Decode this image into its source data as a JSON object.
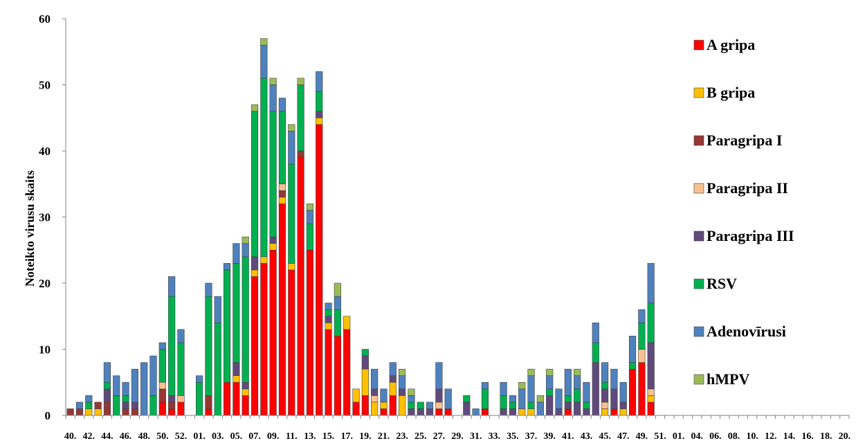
{
  "chart_data": {
    "type": "bar",
    "stacked": true,
    "ylabel": "Noteikto virusu skaits",
    "xlabel": "",
    "ylim": [
      0,
      60
    ],
    "yticks": [
      0,
      10,
      20,
      30,
      40,
      50,
      60
    ],
    "grid": false,
    "legend_position": "right",
    "weeks": [
      "40",
      "41",
      "42",
      "43",
      "44",
      "45",
      "46",
      "47",
      "48",
      "49",
      "50",
      "51",
      "52",
      "01",
      "02",
      "03",
      "04",
      "05",
      "06",
      "07",
      "08",
      "09",
      "10",
      "11",
      "12",
      "13",
      "14",
      "15",
      "16",
      "17",
      "18",
      "19",
      "20",
      "21",
      "22",
      "23",
      "24",
      "25",
      "26",
      "27",
      "28",
      "29",
      "30",
      "31",
      "32",
      "33",
      "34",
      "35",
      "36",
      "37",
      "38",
      "39",
      "40",
      "41",
      "42",
      "43",
      "44",
      "45",
      "46",
      "47",
      "48",
      "49",
      "50",
      "51",
      "52",
      "01",
      "02",
      "03",
      "04",
      "05",
      "06",
      "07",
      "08",
      "09",
      "10",
      "11",
      "12",
      "13",
      "14",
      "15",
      "16",
      "17",
      "18",
      "19",
      "20"
    ],
    "tick_labels": [
      "40.",
      "42.",
      "44.",
      "46.",
      "48.",
      "50.",
      "52.",
      "01.",
      "03.",
      "05.",
      "07.",
      "09.",
      "11.",
      "13.",
      "15.",
      "17.",
      "19.",
      "21.",
      "23.",
      "25.",
      "27.",
      "29.",
      "31.",
      "33.",
      "35.",
      "37.",
      "39.",
      "41.",
      "43.",
      "45.",
      "47.",
      "49.",
      "51.",
      "01.",
      "04.",
      "06.",
      "08.",
      "10.",
      "12.",
      "14.",
      "16.",
      "18.",
      "20."
    ],
    "series": [
      {
        "name": "A gripa",
        "color": "#ff0000",
        "values": [
          0,
          0,
          0,
          0,
          0,
          0,
          0,
          0,
          0,
          0,
          2,
          1,
          2,
          0,
          0,
          1,
          0,
          5,
          5,
          3,
          21,
          23,
          25,
          32,
          22,
          39,
          25,
          44,
          13,
          12,
          13,
          2,
          3,
          0,
          1,
          3,
          0,
          0,
          0,
          0,
          1,
          1,
          0,
          0,
          0,
          1,
          0,
          0,
          0,
          0,
          0,
          0,
          0,
          0,
          1,
          0,
          0,
          0,
          0,
          1,
          0,
          7,
          8,
          2,
          0,
          0,
          0,
          0,
          0,
          0,
          0,
          0,
          0,
          0,
          0,
          0,
          0,
          0,
          0,
          0,
          0,
          0,
          0,
          0,
          0
        ]
      },
      {
        "name": "B gripa",
        "color": "#ffc000",
        "values": [
          0,
          0,
          1,
          1,
          0,
          0,
          0,
          0,
          0,
          0,
          0,
          0,
          0,
          0,
          0,
          0,
          0,
          0,
          1,
          1,
          1,
          1,
          1,
          1,
          1,
          0,
          0,
          1,
          1,
          0,
          2,
          2,
          4,
          2,
          1,
          2,
          3,
          0,
          0,
          0,
          0,
          0,
          0,
          0,
          0,
          0,
          0,
          0,
          0,
          1,
          1,
          0,
          0,
          0,
          0,
          0,
          0,
          0,
          1,
          0,
          1,
          0,
          0,
          1,
          0,
          0,
          0,
          0,
          0,
          0,
          0,
          0,
          0,
          0,
          0,
          0,
          0,
          0,
          0,
          0,
          0,
          0,
          0,
          0,
          0
        ]
      },
      {
        "name": "Paragripa I",
        "color": "#953735",
        "values": [
          1,
          1,
          0,
          1,
          2,
          0,
          1,
          1,
          0,
          0,
          2,
          1,
          0,
          0,
          0,
          2,
          0,
          0,
          0,
          0,
          0,
          0,
          0,
          1,
          0,
          1,
          0,
          0,
          0,
          0,
          0,
          0,
          0,
          0,
          0,
          0,
          0,
          0,
          0,
          0,
          0,
          0,
          0,
          0,
          0,
          0,
          0,
          0,
          0,
          0,
          0,
          0,
          0,
          0,
          0,
          0,
          0,
          0,
          0,
          0,
          0,
          0,
          0,
          0,
          0,
          0,
          0,
          0,
          0,
          0,
          0,
          0,
          0,
          0,
          0,
          0,
          0,
          0,
          0,
          0,
          0,
          0,
          0,
          0,
          0
        ]
      },
      {
        "name": "Paragripa II",
        "color": "#fac090",
        "values": [
          0,
          0,
          0,
          0,
          0,
          0,
          0,
          0,
          0,
          0,
          1,
          0,
          1,
          0,
          0,
          0,
          0,
          0,
          0,
          0,
          0,
          0,
          0,
          1,
          0,
          0,
          0,
          0,
          0,
          0,
          0,
          0,
          0,
          1,
          0,
          0,
          0,
          0,
          0,
          0,
          1,
          0,
          0,
          0,
          0,
          0,
          0,
          0,
          0,
          0,
          0,
          0,
          0,
          0,
          0,
          0,
          0,
          0,
          1,
          0,
          0,
          0,
          2,
          1,
          0,
          0,
          0,
          0,
          0,
          0,
          0,
          0,
          0,
          0,
          0,
          0,
          0,
          0,
          0,
          0,
          0,
          0,
          0,
          0,
          0
        ]
      },
      {
        "name": "Paragripa III",
        "color": "#604a7b",
        "values": [
          0,
          0,
          0,
          0,
          2,
          0,
          1,
          1,
          0,
          0,
          0,
          1,
          0,
          0,
          0,
          0,
          0,
          0,
          2,
          1,
          2,
          0,
          1,
          0,
          0,
          0,
          0,
          1,
          1,
          0,
          0,
          0,
          2,
          1,
          0,
          1,
          1,
          1,
          1,
          1,
          2,
          0,
          0,
          2,
          0,
          0,
          0,
          1,
          1,
          0,
          0,
          0,
          3,
          1,
          1,
          2,
          1,
          8,
          2,
          3,
          1,
          0,
          0,
          7,
          0,
          0,
          0,
          0,
          0,
          0,
          0,
          0,
          0,
          0,
          0,
          0,
          0,
          0,
          0,
          0,
          0,
          0,
          0,
          0,
          0
        ]
      },
      {
        "name": "RSV",
        "color": "#00b050",
        "values": [
          0,
          0,
          1,
          0,
          1,
          3,
          1,
          0,
          0,
          3,
          5,
          15,
          8,
          0,
          5,
          15,
          14,
          17,
          15,
          19,
          22,
          27,
          19,
          11,
          15,
          10,
          4,
          3,
          1,
          4,
          0,
          0,
          1,
          0,
          0,
          0,
          0,
          1,
          1,
          0,
          0,
          0,
          0,
          1,
          0,
          3,
          0,
          2,
          1,
          0,
          1,
          0,
          1,
          0,
          1,
          2,
          1,
          3,
          1,
          0,
          0,
          1,
          4,
          6,
          0,
          0,
          0,
          0,
          0,
          0,
          0,
          0,
          0,
          0,
          0,
          0,
          0,
          0,
          0,
          0,
          0,
          0,
          0,
          0,
          0
        ]
      },
      {
        "name": "Adenovīrusi",
        "color": "#4f81bd",
        "values": [
          0,
          1,
          1,
          0,
          3,
          3,
          2,
          5,
          8,
          6,
          1,
          3,
          2,
          0,
          1,
          2,
          4,
          1,
          3,
          2,
          0,
          5,
          4,
          2,
          5,
          0,
          2,
          3,
          1,
          2,
          0,
          0,
          0,
          3,
          2,
          2,
          2,
          1,
          0,
          1,
          4,
          3,
          0,
          0,
          1,
          1,
          0,
          2,
          1,
          3,
          4,
          2,
          2,
          3,
          4,
          2,
          3,
          3,
          3,
          3,
          3,
          4,
          2,
          6,
          0,
          0,
          0,
          0,
          0,
          0,
          0,
          0,
          0,
          0,
          0,
          0,
          0,
          0,
          0,
          0,
          0,
          0,
          0,
          0,
          0
        ]
      },
      {
        "name": "hMPV",
        "color": "#9bbb59",
        "values": [
          0,
          0,
          0,
          0,
          0,
          0,
          0,
          0,
          0,
          0,
          0,
          0,
          0,
          0,
          0,
          0,
          0,
          0,
          0,
          1,
          1,
          1,
          1,
          0,
          1,
          1,
          1,
          0,
          0,
          2,
          0,
          0,
          0,
          0,
          0,
          0,
          1,
          1,
          0,
          0,
          0,
          0,
          0,
          0,
          0,
          0,
          0,
          0,
          0,
          1,
          1,
          1,
          1,
          0,
          0,
          1,
          0,
          0,
          0,
          0,
          0,
          0,
          0,
          0,
          0,
          0,
          0,
          0,
          0,
          0,
          0,
          0,
          0,
          0,
          0,
          0,
          0,
          0,
          0,
          0,
          0,
          0,
          0,
          0,
          0
        ]
      }
    ]
  }
}
